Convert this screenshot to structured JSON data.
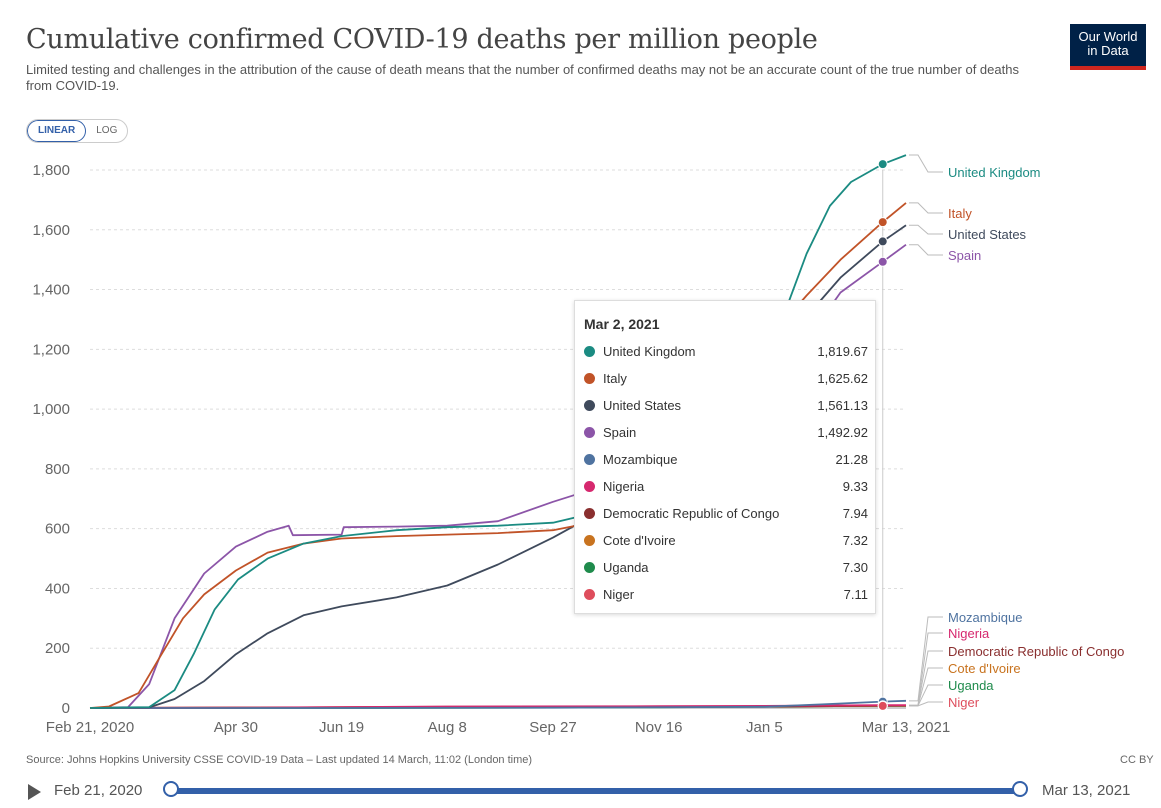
{
  "header": {
    "title": "Cumulative confirmed COVID-19 deaths per million people",
    "subtitle": "Limited testing and challenges in the attribution of the cause of death means that the number of confirmed deaths may not be an accurate count of the true number of deaths from COVID-19.",
    "logo_line1": "Our World",
    "logo_line2": "in Data"
  },
  "scale_toggle": {
    "linear": "LINEAR",
    "log": "LOG",
    "active": "LINEAR"
  },
  "colors": {
    "accent": "#3360a9",
    "logo_bg": "#002147",
    "logo_bar": "#ce261e"
  },
  "chart_data": {
    "type": "line",
    "x_ticks": [
      "Feb 21, 2020",
      "Apr 30",
      "Jun 19",
      "Aug 8",
      "Sep 27",
      "Nov 16",
      "Jan 5",
      "Mar 13, 2021"
    ],
    "x_range": [
      "2020-02-21",
      "2021-03-13"
    ],
    "y_ticks": [
      "0",
      "200",
      "400",
      "600",
      "800",
      "1,000",
      "1,200",
      "1,400",
      "1,600",
      "1,800"
    ],
    "ylim": [
      0,
      1800
    ],
    "grid": "horizontal dashed",
    "hover_date": "2021-03-02",
    "series": [
      {
        "name": "United Kingdom",
        "color": "#1b8b82",
        "points": [
          [
            "2020-02-21",
            0
          ],
          [
            "2020-03-20",
            3
          ],
          [
            "2020-04-01",
            60
          ],
          [
            "2020-04-10",
            180
          ],
          [
            "2020-04-20",
            330
          ],
          [
            "2020-05-01",
            430
          ],
          [
            "2020-05-15",
            500
          ],
          [
            "2020-06-01",
            550
          ],
          [
            "2020-06-19",
            575
          ],
          [
            "2020-07-15",
            595
          ],
          [
            "2020-08-08",
            605
          ],
          [
            "2020-09-01",
            610
          ],
          [
            "2020-09-27",
            620
          ],
          [
            "2020-10-15",
            650
          ],
          [
            "2020-11-01",
            690
          ],
          [
            "2020-11-16",
            760
          ],
          [
            "2020-12-01",
            870
          ],
          [
            "2020-12-15",
            960
          ],
          [
            "2021-01-01",
            1080
          ],
          [
            "2021-01-05",
            1150
          ],
          [
            "2021-01-15",
            1330
          ],
          [
            "2021-01-25",
            1520
          ],
          [
            "2021-02-05",
            1680
          ],
          [
            "2021-02-15",
            1760
          ],
          [
            "2021-03-02",
            1819.67
          ],
          [
            "2021-03-13",
            1850
          ]
        ]
      },
      {
        "name": "Italy",
        "color": "#c15328",
        "points": [
          [
            "2020-02-21",
            0
          ],
          [
            "2020-03-01",
            5
          ],
          [
            "2020-03-15",
            50
          ],
          [
            "2020-03-25",
            170
          ],
          [
            "2020-04-05",
            300
          ],
          [
            "2020-04-15",
            380
          ],
          [
            "2020-04-30",
            460
          ],
          [
            "2020-05-15",
            520
          ],
          [
            "2020-06-01",
            550
          ],
          [
            "2020-06-19",
            567
          ],
          [
            "2020-07-15",
            575
          ],
          [
            "2020-08-08",
            580
          ],
          [
            "2020-09-01",
            585
          ],
          [
            "2020-09-27",
            595
          ],
          [
            "2020-10-15",
            620
          ],
          [
            "2020-11-01",
            680
          ],
          [
            "2020-11-16",
            780
          ],
          [
            "2020-12-01",
            920
          ],
          [
            "2020-12-15",
            1060
          ],
          [
            "2021-01-05",
            1220
          ],
          [
            "2021-01-25",
            1380
          ],
          [
            "2021-02-10",
            1500
          ],
          [
            "2021-03-02",
            1625.62
          ],
          [
            "2021-03-13",
            1690
          ]
        ]
      },
      {
        "name": "United States",
        "color": "#3f4a5c",
        "points": [
          [
            "2020-02-21",
            0
          ],
          [
            "2020-03-20",
            2
          ],
          [
            "2020-04-01",
            30
          ],
          [
            "2020-04-15",
            90
          ],
          [
            "2020-04-30",
            180
          ],
          [
            "2020-05-15",
            250
          ],
          [
            "2020-06-01",
            310
          ],
          [
            "2020-06-19",
            340
          ],
          [
            "2020-07-15",
            370
          ],
          [
            "2020-08-08",
            410
          ],
          [
            "2020-09-01",
            480
          ],
          [
            "2020-09-27",
            570
          ],
          [
            "2020-10-15",
            640
          ],
          [
            "2020-11-01",
            700
          ],
          [
            "2020-11-16",
            780
          ],
          [
            "2020-12-01",
            850
          ],
          [
            "2020-12-15",
            980
          ],
          [
            "2021-01-05",
            1120
          ],
          [
            "2021-01-25",
            1310
          ],
          [
            "2021-02-10",
            1440
          ],
          [
            "2021-03-02",
            1561.13
          ],
          [
            "2021-03-13",
            1615
          ]
        ]
      },
      {
        "name": "Spain",
        "color": "#8c55a8",
        "points": [
          [
            "2020-02-21",
            0
          ],
          [
            "2020-03-10",
            3
          ],
          [
            "2020-03-20",
            80
          ],
          [
            "2020-04-01",
            300
          ],
          [
            "2020-04-15",
            450
          ],
          [
            "2020-04-30",
            540
          ],
          [
            "2020-05-15",
            590
          ],
          [
            "2020-05-25",
            610
          ],
          [
            "2020-05-27",
            578
          ],
          [
            "2020-06-19",
            580
          ],
          [
            "2020-06-20",
            605
          ],
          [
            "2020-07-15",
            607
          ],
          [
            "2020-08-08",
            610
          ],
          [
            "2020-09-01",
            625
          ],
          [
            "2020-09-27",
            690
          ],
          [
            "2020-10-15",
            730
          ],
          [
            "2020-11-01",
            780
          ],
          [
            "2020-11-16",
            880
          ],
          [
            "2020-12-01",
            950
          ],
          [
            "2020-12-15",
            1010
          ],
          [
            "2021-01-05",
            1080
          ],
          [
            "2021-01-25",
            1230
          ],
          [
            "2021-02-10",
            1390
          ],
          [
            "2021-03-02",
            1492.92
          ],
          [
            "2021-03-13",
            1550
          ]
        ]
      },
      {
        "name": "Mozambique",
        "color": "#4f73a0",
        "points": [
          [
            "2020-02-21",
            0
          ],
          [
            "2020-06-01",
            0
          ],
          [
            "2020-09-27",
            1
          ],
          [
            "2021-01-05",
            4
          ],
          [
            "2021-02-01",
            12
          ],
          [
            "2021-03-02",
            21.28
          ],
          [
            "2021-03-13",
            24
          ]
        ]
      },
      {
        "name": "Nigeria",
        "color": "#d6286e",
        "points": [
          [
            "2020-02-21",
            0
          ],
          [
            "2020-05-01",
            1
          ],
          [
            "2020-08-08",
            5
          ],
          [
            "2020-11-16",
            6
          ],
          [
            "2021-01-05",
            7
          ],
          [
            "2021-03-02",
            9.33
          ],
          [
            "2021-03-13",
            9.6
          ]
        ]
      },
      {
        "name": "Democratic Republic of Congo",
        "color": "#8a2f2f",
        "points": [
          [
            "2020-02-21",
            0
          ],
          [
            "2020-05-01",
            1
          ],
          [
            "2020-08-08",
            3
          ],
          [
            "2021-01-05",
            5
          ],
          [
            "2021-03-02",
            7.94
          ],
          [
            "2021-03-13",
            8.2
          ]
        ]
      },
      {
        "name": "Cote d'Ivoire",
        "color": "#c8731f",
        "points": [
          [
            "2020-02-21",
            0
          ],
          [
            "2020-05-01",
            1
          ],
          [
            "2020-08-08",
            4
          ],
          [
            "2021-01-05",
            5
          ],
          [
            "2021-03-02",
            7.32
          ],
          [
            "2021-03-13",
            7.6
          ]
        ]
      },
      {
        "name": "Uganda",
        "color": "#1f8b4c",
        "points": [
          [
            "2020-02-21",
            0
          ],
          [
            "2020-08-08",
            0.5
          ],
          [
            "2020-11-16",
            2.5
          ],
          [
            "2021-01-05",
            5
          ],
          [
            "2021-03-02",
            7.3
          ],
          [
            "2021-03-13",
            7.4
          ]
        ]
      },
      {
        "name": "Niger",
        "color": "#de4d5c",
        "points": [
          [
            "2020-02-21",
            0
          ],
          [
            "2020-05-01",
            2
          ],
          [
            "2020-08-08",
            3
          ],
          [
            "2021-01-05",
            5
          ],
          [
            "2021-03-02",
            7.11
          ],
          [
            "2021-03-13",
            7.3
          ]
        ]
      }
    ]
  },
  "tooltip": {
    "date": "Mar 2, 2021",
    "rows": [
      {
        "name": "United Kingdom",
        "value": "1,819.67",
        "color": "#1b8b82"
      },
      {
        "name": "Italy",
        "value": "1,625.62",
        "color": "#c15328"
      },
      {
        "name": "United States",
        "value": "1,561.13",
        "color": "#3f4a5c"
      },
      {
        "name": "Spain",
        "value": "1,492.92",
        "color": "#8c55a8"
      },
      {
        "name": "Mozambique",
        "value": "21.28",
        "color": "#4f73a0"
      },
      {
        "name": "Nigeria",
        "value": "9.33",
        "color": "#d6286e"
      },
      {
        "name": "Democratic Republic of Congo",
        "value": "7.94",
        "color": "#8a2f2f"
      },
      {
        "name": "Cote d'Ivoire",
        "value": "7.32",
        "color": "#c8731f"
      },
      {
        "name": "Uganda",
        "value": "7.30",
        "color": "#1f8b4c"
      },
      {
        "name": "Niger",
        "value": "7.11",
        "color": "#de4d5c"
      }
    ]
  },
  "footer": {
    "source": "Source: Johns Hopkins University CSSE COVID-19 Data – Last updated 14 March, 11:02 (London time)",
    "license": "CC BY"
  },
  "timeline": {
    "start_label": "Feb 21, 2020",
    "end_label": "Mar 13, 2021"
  }
}
